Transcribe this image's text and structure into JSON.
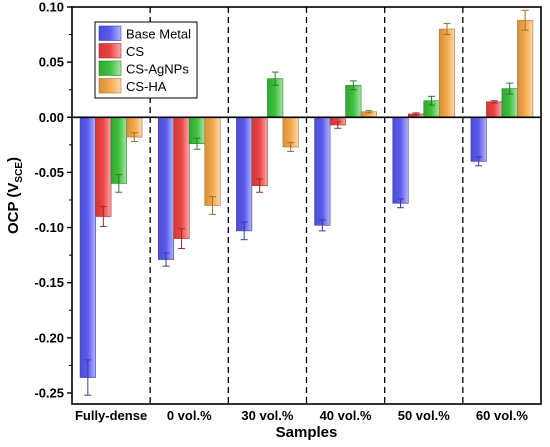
{
  "chart_data": {
    "type": "bar",
    "title": "",
    "xlabel": "Samples",
    "ylabel_main": "OCP (V",
    "ylabel_sub": "SCE",
    "ylabel_close": ")",
    "ylim": [
      -0.26,
      0.1
    ],
    "yticks": [
      0.1,
      0.05,
      0.0,
      -0.05,
      -0.1,
      -0.15,
      -0.2,
      -0.25
    ],
    "ytick_labels": [
      "0.10",
      "0.05",
      "0.00",
      "-0.05",
      "-0.10",
      "-0.15",
      "-0.20",
      "-0.25"
    ],
    "categories": [
      "Fully-dense",
      "0 vol.%",
      "30 vol.%",
      "40 vol.%",
      "50 vol.%",
      "60 vol.%"
    ],
    "legend_position": "top-left",
    "grid": false,
    "series": [
      {
        "name": "Base Metal",
        "color": "#5a5af0",
        "values": [
          -0.236,
          -0.129,
          -0.103,
          -0.098,
          -0.078,
          -0.04
        ],
        "errors": [
          0.016,
          0.006,
          0.008,
          0.005,
          0.004,
          0.004
        ]
      },
      {
        "name": "CS",
        "color": "#ee4444",
        "values": [
          -0.09,
          -0.11,
          -0.062,
          -0.007,
          0.003,
          0.014
        ],
        "errors": [
          0.009,
          0.009,
          0.006,
          0.003,
          0.001,
          0.001
        ]
      },
      {
        "name": "CS-AgNPs",
        "color": "#3ec13e",
        "values": [
          -0.06,
          -0.024,
          0.035,
          0.029,
          0.015,
          0.026
        ],
        "errors": [
          0.008,
          0.005,
          0.006,
          0.004,
          0.004,
          0.005
        ]
      },
      {
        "name": "CS-HA",
        "color": "#f5a94a",
        "values": [
          -0.018,
          -0.08,
          -0.027,
          0.005,
          0.08,
          0.088
        ],
        "errors": [
          0.004,
          0.008,
          0.004,
          0.001,
          0.005,
          0.009
        ]
      }
    ]
  }
}
